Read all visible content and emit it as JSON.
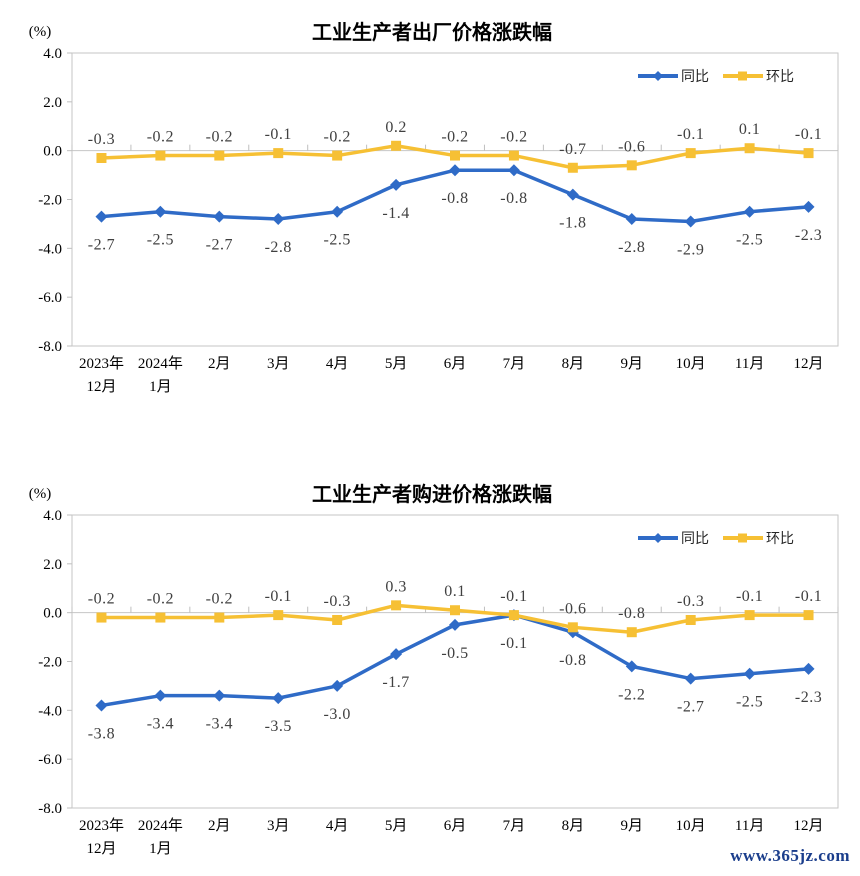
{
  "page": {
    "background": "#FFFFFF"
  },
  "watermark": {
    "text": "www.365jz.com",
    "color": "#1B3E8C"
  },
  "chart_data": [
    {
      "type": "line",
      "title": "工业生产者出厂价格涨跌幅",
      "unit_label": "(%)",
      "categories": [
        [
          "2023年",
          "12月"
        ],
        [
          "2024年",
          "1月"
        ],
        [
          "2月"
        ],
        [
          "3月"
        ],
        [
          "4月"
        ],
        [
          "5月"
        ],
        [
          "6月"
        ],
        [
          "7月"
        ],
        [
          "8月"
        ],
        [
          "9月"
        ],
        [
          "10月"
        ],
        [
          "11月"
        ],
        [
          "12月"
        ]
      ],
      "series": [
        {
          "name": "同比",
          "color": "#2F6BC7",
          "marker": "diamond",
          "label_position": "below",
          "values": [
            -2.7,
            -2.5,
            -2.7,
            -2.8,
            -2.5,
            -1.4,
            -0.8,
            -0.8,
            -1.8,
            -2.8,
            -2.9,
            -2.5,
            -2.3
          ]
        },
        {
          "name": "环比",
          "color": "#F6C034",
          "marker": "square",
          "label_position": "above",
          "values": [
            -0.3,
            -0.2,
            -0.2,
            -0.1,
            -0.2,
            0.2,
            -0.2,
            -0.2,
            -0.7,
            -0.6,
            -0.1,
            0.1,
            -0.1
          ]
        }
      ],
      "y_axis": {
        "min": -8,
        "max": 4,
        "step": 2,
        "tick_labels": [
          "4.0",
          "2.0",
          "0.0",
          "-2.0",
          "-4.0",
          "-6.0",
          "-8.0"
        ]
      },
      "x_axis_at": 0,
      "legend_position": "inside-top-right",
      "grid": false,
      "axis_color": "#C6C6C6",
      "data_label_color": "#404040",
      "text_color": "#000000"
    },
    {
      "type": "line",
      "title": "工业生产者购进价格涨跌幅",
      "unit_label": "(%)",
      "categories": [
        [
          "2023年",
          "12月"
        ],
        [
          "2024年",
          "1月"
        ],
        [
          "2月"
        ],
        [
          "3月"
        ],
        [
          "4月"
        ],
        [
          "5月"
        ],
        [
          "6月"
        ],
        [
          "7月"
        ],
        [
          "8月"
        ],
        [
          "9月"
        ],
        [
          "10月"
        ],
        [
          "11月"
        ],
        [
          "12月"
        ]
      ],
      "series": [
        {
          "name": "同比",
          "color": "#2F6BC7",
          "marker": "diamond",
          "label_position": "below",
          "values": [
            -3.8,
            -3.4,
            -3.4,
            -3.5,
            -3.0,
            -1.7,
            -0.5,
            -0.1,
            -0.8,
            -2.2,
            -2.7,
            -2.5,
            -2.3
          ]
        },
        {
          "name": "环比",
          "color": "#F6C034",
          "marker": "square",
          "label_position": "above",
          "values": [
            -0.2,
            -0.2,
            -0.2,
            -0.1,
            -0.3,
            0.3,
            0.1,
            -0.1,
            -0.6,
            -0.8,
            -0.3,
            -0.1,
            -0.1
          ]
        }
      ],
      "y_axis": {
        "min": -8,
        "max": 4,
        "step": 2,
        "tick_labels": [
          "4.0",
          "2.0",
          "0.0",
          "-2.0",
          "-4.0",
          "-6.0",
          "-8.0"
        ]
      },
      "x_axis_at": 0,
      "legend_position": "inside-top-right",
      "grid": false,
      "axis_color": "#C6C6C6",
      "data_label_color": "#404040",
      "text_color": "#000000"
    }
  ]
}
